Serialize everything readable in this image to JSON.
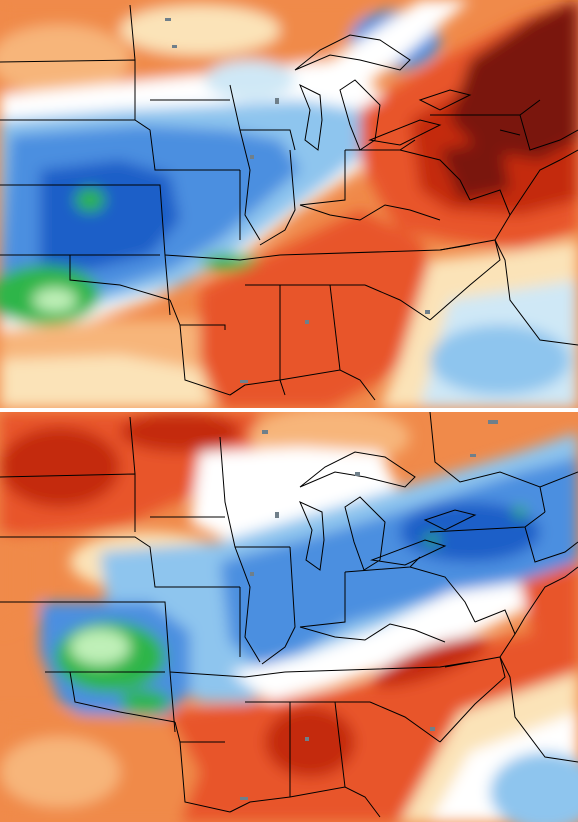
{
  "figure": {
    "panels": [
      {
        "id": "top",
        "field": "anomaly"
      },
      {
        "id": "bottom",
        "field": "anomaly"
      }
    ]
  },
  "colors": {
    "deep_red": "#7a1608",
    "red": "#c42a10",
    "orange_red": "#e8552a",
    "orange": "#f08a4a",
    "light_orange": "#f7b57a",
    "cream": "#fbe3b8",
    "white": "#ffffff",
    "pale_blue": "#cfe8f6",
    "light_blue": "#8ec5ee",
    "blue": "#4b8fe0",
    "deep_blue": "#1f5fc8",
    "green": "#2fb54a",
    "light_green": "#bff0b8",
    "state_lines": "#000000",
    "lakes": "#6f7f8a"
  }
}
